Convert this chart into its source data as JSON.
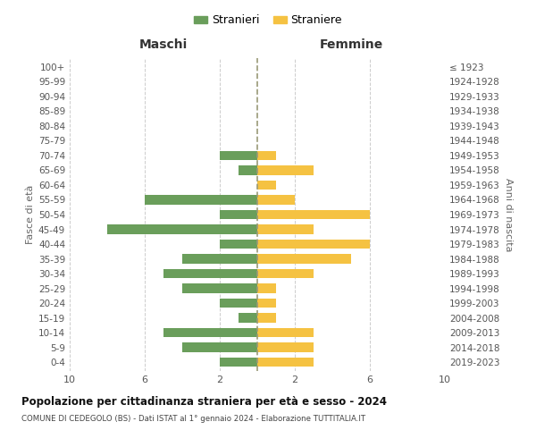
{
  "age_groups": [
    "0-4",
    "5-9",
    "10-14",
    "15-19",
    "20-24",
    "25-29",
    "30-34",
    "35-39",
    "40-44",
    "45-49",
    "50-54",
    "55-59",
    "60-64",
    "65-69",
    "70-74",
    "75-79",
    "80-84",
    "85-89",
    "90-94",
    "95-99",
    "100+"
  ],
  "birth_years": [
    "2019-2023",
    "2014-2018",
    "2009-2013",
    "2004-2008",
    "1999-2003",
    "1994-1998",
    "1989-1993",
    "1984-1988",
    "1979-1983",
    "1974-1978",
    "1969-1973",
    "1964-1968",
    "1959-1963",
    "1954-1958",
    "1949-1953",
    "1944-1948",
    "1939-1943",
    "1934-1938",
    "1929-1933",
    "1924-1928",
    "≤ 1923"
  ],
  "maschi": [
    2,
    4,
    5,
    1,
    2,
    4,
    5,
    4,
    2,
    8,
    2,
    6,
    0,
    1,
    2,
    0,
    0,
    0,
    0,
    0,
    0
  ],
  "femmine": [
    3,
    3,
    3,
    1,
    1,
    1,
    3,
    5,
    6,
    3,
    6,
    2,
    1,
    3,
    1,
    0,
    0,
    0,
    0,
    0,
    0
  ],
  "color_maschi": "#6a9e5b",
  "color_femmine": "#f5c242",
  "title": "Popolazione per cittadinanza straniera per età e sesso - 2024",
  "subtitle": "COMUNE DI CEDEGOLO (BS) - Dati ISTAT al 1° gennaio 2024 - Elaborazione TUTTITALIA.IT",
  "label_maschi": "Maschi",
  "label_femmine": "Femmine",
  "ylabel_left": "Fasce di età",
  "ylabel_right": "Anni di nascita",
  "legend_maschi": "Stranieri",
  "legend_femmine": "Straniere",
  "xlim": 10,
  "background_color": "#ffffff",
  "grid_color": "#cccccc",
  "dashed_line_color": "#999977"
}
